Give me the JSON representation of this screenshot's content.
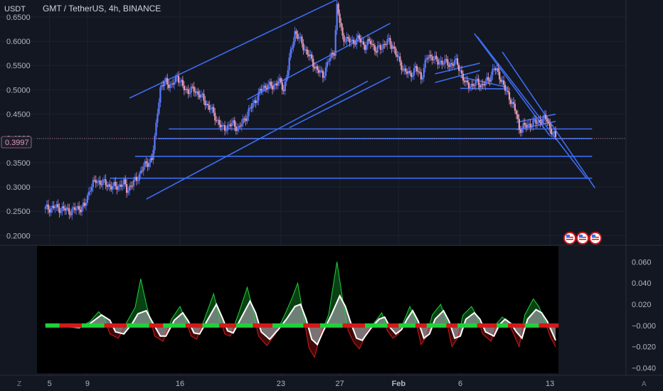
{
  "header": {
    "currency": "USDT",
    "title": "GMT / TetherUS, 4h, BINANCE"
  },
  "price_badge": "0.3997",
  "bottom_left_icon": "Z",
  "bottom_right_icon": "A",
  "colors": {
    "background": "#131722",
    "grid": "#1e2230",
    "candle_up": "#5b7bff",
    "candle_down": "#e59ab6",
    "trendline": "#3d6cf0",
    "osc_green": "#1fd13a",
    "osc_red": "#d31a1a",
    "osc_white": "#ffffff"
  },
  "chart_data": [
    {
      "type": "candlestick",
      "title": "GMT / TetherUS, 4h, BINANCE",
      "ylabel": "USDT",
      "ylim": [
        0.18,
        0.685
      ],
      "y_ticks": [
        "0.6500",
        "0.6000",
        "0.5500",
        "0.5000",
        "0.4500",
        "0.4000",
        "0.3500",
        "0.3000",
        "0.2500",
        "0.2000"
      ],
      "y_tick_values": [
        0.65,
        0.6,
        0.55,
        0.5,
        0.45,
        0.4,
        0.35,
        0.3,
        0.25,
        0.2
      ],
      "x_ticks": [
        "5",
        "9",
        "16",
        "23",
        "27",
        "Feb",
        "6",
        "13"
      ],
      "x_tick_pos": [
        1.5,
        15,
        48,
        84,
        105,
        126,
        148,
        180
      ],
      "x_range": [
        -3,
        183
      ],
      "last_price": 0.3997,
      "close_path": [
        [
          0,
          0.255
        ],
        [
          3,
          0.258
        ],
        [
          6,
          0.255
        ],
        [
          9,
          0.25
        ],
        [
          11,
          0.255
        ],
        [
          14,
          0.26
        ],
        [
          16,
          0.3
        ],
        [
          18,
          0.312
        ],
        [
          20,
          0.31
        ],
        [
          22,
          0.305
        ],
        [
          24,
          0.3
        ],
        [
          26,
          0.302
        ],
        [
          28,
          0.307
        ],
        [
          29,
          0.295
        ],
        [
          31,
          0.305
        ],
        [
          34,
          0.33
        ],
        [
          36,
          0.35
        ],
        [
          38,
          0.355
        ],
        [
          39,
          0.4
        ],
        [
          40,
          0.46
        ],
        [
          41,
          0.5
        ],
        [
          43,
          0.52
        ],
        [
          45,
          0.505
        ],
        [
          47,
          0.53
        ],
        [
          49,
          0.505
        ],
        [
          51,
          0.498
        ],
        [
          53,
          0.5
        ],
        [
          55,
          0.49
        ],
        [
          57,
          0.475
        ],
        [
          59,
          0.46
        ],
        [
          61,
          0.44
        ],
        [
          63,
          0.42
        ],
        [
          65,
          0.425
        ],
        [
          67,
          0.43
        ],
        [
          69,
          0.42
        ],
        [
          71,
          0.44
        ],
        [
          73,
          0.46
        ],
        [
          75,
          0.48
        ],
        [
          77,
          0.5
        ],
        [
          79,
          0.51
        ],
        [
          81,
          0.505
        ],
        [
          83,
          0.52
        ],
        [
          85,
          0.5
        ],
        [
          87,
          0.56
        ],
        [
          89,
          0.62
        ],
        [
          91,
          0.6
        ],
        [
          93,
          0.58
        ],
        [
          95,
          0.56
        ],
        [
          97,
          0.54
        ],
        [
          99,
          0.53
        ],
        [
          101,
          0.56
        ],
        [
          103,
          0.58
        ],
        [
          104,
          0.67
        ],
        [
          106,
          0.61
        ],
        [
          108,
          0.6
        ],
        [
          110,
          0.6
        ],
        [
          112,
          0.605
        ],
        [
          114,
          0.59
        ],
        [
          116,
          0.6
        ],
        [
          118,
          0.58
        ],
        [
          120,
          0.59
        ],
        [
          122,
          0.6
        ],
        [
          124,
          0.59
        ],
        [
          126,
          0.56
        ],
        [
          128,
          0.54
        ],
        [
          130,
          0.53
        ],
        [
          132,
          0.545
        ],
        [
          134,
          0.525
        ],
        [
          136,
          0.565
        ],
        [
          138,
          0.57
        ],
        [
          140,
          0.555
        ],
        [
          142,
          0.56
        ],
        [
          144,
          0.55
        ],
        [
          146,
          0.56
        ],
        [
          148,
          0.54
        ],
        [
          150,
          0.51
        ],
        [
          152,
          0.51
        ],
        [
          154,
          0.515
        ],
        [
          156,
          0.51
        ],
        [
          158,
          0.52
        ],
        [
          160,
          0.545
        ],
        [
          162,
          0.53
        ],
        [
          164,
          0.5
        ],
        [
          166,
          0.48
        ],
        [
          168,
          0.45
        ],
        [
          169,
          0.42
        ],
        [
          171,
          0.425
        ],
        [
          173,
          0.43
        ],
        [
          175,
          0.433
        ],
        [
          177,
          0.438
        ],
        [
          179,
          0.44
        ],
        [
          180,
          0.42
        ],
        [
          181,
          0.41
        ],
        [
          182,
          0.4
        ]
      ],
      "trendlines": [
        [
          [
            30,
            0.483
          ],
          [
            104,
            0.686
          ]
        ],
        [
          [
            36,
            0.275
          ],
          [
            115,
            0.518
          ]
        ],
        [
          [
            72,
            0.48
          ],
          [
            123,
            0.637
          ]
        ],
        [
          [
            87,
            0.422
          ],
          [
            123,
            0.527
          ]
        ],
        [
          [
            139,
            0.533
          ],
          [
            155,
            0.555
          ]
        ],
        [
          [
            139,
            0.515
          ],
          [
            155,
            0.54
          ]
        ],
        [
          [
            148,
            0.527
          ],
          [
            165,
            0.505
          ]
        ],
        [
          [
            148,
            0.503
          ],
          [
            165,
            0.502
          ]
        ],
        [
          [
            153,
            0.616
          ],
          [
            180,
            0.405
          ]
        ],
        [
          [
            154,
            0.61
          ],
          [
            193,
            0.318
          ]
        ],
        [
          [
            163,
            0.578
          ],
          [
            196,
            0.298
          ]
        ],
        [
          [
            168,
            0.433
          ],
          [
            182,
            0.45
          ]
        ],
        [
          [
            168,
            0.418
          ],
          [
            182,
            0.435
          ]
        ],
        [
          [
            44,
            0.4195
          ],
          [
            195,
            0.4195
          ]
        ],
        [
          [
            40,
            0.3997
          ],
          [
            195,
            0.3997
          ]
        ],
        [
          [
            32,
            0.363
          ],
          [
            195,
            0.363
          ]
        ],
        [
          [
            23,
            0.318
          ],
          [
            195,
            0.318
          ]
        ]
      ]
    },
    {
      "type": "oscillator",
      "ylim": [
        -0.045,
        0.075
      ],
      "y_ticks": [
        "0.060",
        "0.040",
        "0.020",
        "−0.000",
        "−0.020",
        "−0.040"
      ],
      "y_tick_values": [
        0.06,
        0.04,
        0.02,
        0.0,
        -0.02,
        -0.04
      ],
      "x_range": [
        -3,
        183
      ],
      "fast_line": [
        [
          0,
          0.001
        ],
        [
          4,
          0.001
        ],
        [
          8,
          -0.001
        ],
        [
          12,
          -0.002
        ],
        [
          16,
          0.004
        ],
        [
          19,
          0.013
        ],
        [
          21,
          0.007
        ],
        [
          23,
          -0.008
        ],
        [
          26,
          -0.012
        ],
        [
          29,
          0.003
        ],
        [
          32,
          0.017
        ],
        [
          34,
          0.044
        ],
        [
          36,
          0.02
        ],
        [
          39,
          -0.01
        ],
        [
          42,
          -0.015
        ],
        [
          45,
          0.006
        ],
        [
          48,
          0.018
        ],
        [
          50,
          0.005
        ],
        [
          52,
          -0.01
        ],
        [
          54,
          -0.013
        ],
        [
          57,
          0.008
        ],
        [
          60,
          0.03
        ],
        [
          62,
          0.008
        ],
        [
          64,
          -0.008
        ],
        [
          66,
          -0.01
        ],
        [
          69,
          0.012
        ],
        [
          72,
          0.036
        ],
        [
          74,
          0.015
        ],
        [
          76,
          -0.01
        ],
        [
          79,
          -0.019
        ],
        [
          82,
          -0.008
        ],
        [
          85,
          0.008
        ],
        [
          88,
          0.026
        ],
        [
          90,
          0.04
        ],
        [
          92,
          0.01
        ],
        [
          94,
          -0.021
        ],
        [
          96,
          -0.03
        ],
        [
          98,
          -0.01
        ],
        [
          101,
          0.01
        ],
        [
          104,
          0.06
        ],
        [
          106,
          0.025
        ],
        [
          108,
          -0.005
        ],
        [
          110,
          -0.016
        ],
        [
          112,
          -0.022
        ],
        [
          115,
          -0.005
        ],
        [
          118,
          0.005
        ],
        [
          120,
          0.012
        ],
        [
          122,
          -0.005
        ],
        [
          124,
          -0.012
        ],
        [
          126,
          -0.008
        ],
        [
          128,
          0.005
        ],
        [
          130,
          0.018
        ],
        [
          132,
          0.005
        ],
        [
          134,
          -0.018
        ],
        [
          136,
          -0.01
        ],
        [
          138,
          0.01
        ],
        [
          141,
          0.02
        ],
        [
          143,
          0.005
        ],
        [
          145,
          -0.02
        ],
        [
          147,
          -0.012
        ],
        [
          149,
          0.01
        ],
        [
          152,
          0.018
        ],
        [
          154,
          0.008
        ],
        [
          156,
          -0.008
        ],
        [
          159,
          -0.015
        ],
        [
          161,
          0.002
        ],
        [
          163,
          0.008
        ],
        [
          165,
          0.003
        ],
        [
          167,
          -0.008
        ],
        [
          169,
          -0.02
        ],
        [
          171,
          0.01
        ],
        [
          174,
          0.025
        ],
        [
          176,
          0.018
        ],
        [
          178,
          0.005
        ],
        [
          180,
          -0.01
        ],
        [
          182,
          -0.02
        ]
      ],
      "slow_line": [
        [
          0,
          0.001
        ],
        [
          4,
          0.001
        ],
        [
          8,
          -0.001
        ],
        [
          12,
          -0.002
        ],
        [
          16,
          0.002
        ],
        [
          20,
          0.01
        ],
        [
          23,
          0.005
        ],
        [
          25,
          -0.006
        ],
        [
          28,
          -0.008
        ],
        [
          31,
          0.002
        ],
        [
          33,
          0.011
        ],
        [
          36,
          0.014
        ],
        [
          38,
          0.004
        ],
        [
          41,
          -0.01
        ],
        [
          43,
          -0.01
        ],
        [
          46,
          0.005
        ],
        [
          49,
          0.012
        ],
        [
          51,
          0.004
        ],
        [
          53,
          -0.007
        ],
        [
          55,
          -0.008
        ],
        [
          58,
          0.006
        ],
        [
          61,
          0.02
        ],
        [
          63,
          0.008
        ],
        [
          65,
          -0.005
        ],
        [
          67,
          -0.007
        ],
        [
          70,
          0.008
        ],
        [
          73,
          0.023
        ],
        [
          75,
          0.012
        ],
        [
          77,
          -0.006
        ],
        [
          80,
          -0.013
        ],
        [
          83,
          -0.004
        ],
        [
          86,
          0.006
        ],
        [
          89,
          0.018
        ],
        [
          91,
          0.02
        ],
        [
          93,
          0.006
        ],
        [
          95,
          -0.013
        ],
        [
          97,
          -0.018
        ],
        [
          99,
          -0.006
        ],
        [
          102,
          0.01
        ],
        [
          105,
          0.028
        ],
        [
          107,
          0.018
        ],
        [
          109,
          0.002
        ],
        [
          111,
          -0.012
        ],
        [
          113,
          -0.014
        ],
        [
          116,
          -0.003
        ],
        [
          119,
          0.006
        ],
        [
          121,
          0.008
        ],
        [
          123,
          -0.002
        ],
        [
          125,
          -0.008
        ],
        [
          127,
          -0.004
        ],
        [
          129,
          0.006
        ],
        [
          131,
          0.014
        ],
        [
          133,
          0.004
        ],
        [
          135,
          -0.012
        ],
        [
          137,
          -0.008
        ],
        [
          139,
          0.006
        ],
        [
          142,
          0.014
        ],
        [
          144,
          0.004
        ],
        [
          146,
          -0.012
        ],
        [
          148,
          -0.01
        ],
        [
          150,
          0.006
        ],
        [
          153,
          0.012
        ],
        [
          155,
          0.006
        ],
        [
          157,
          -0.006
        ],
        [
          160,
          -0.01
        ],
        [
          162,
          0.001
        ],
        [
          164,
          0.006
        ],
        [
          166,
          0.002
        ],
        [
          168,
          -0.006
        ],
        [
          170,
          -0.012
        ],
        [
          172,
          0.006
        ],
        [
          175,
          0.015
        ],
        [
          177,
          0.012
        ],
        [
          179,
          0.004
        ],
        [
          181,
          -0.008
        ],
        [
          182,
          -0.014
        ]
      ]
    }
  ]
}
